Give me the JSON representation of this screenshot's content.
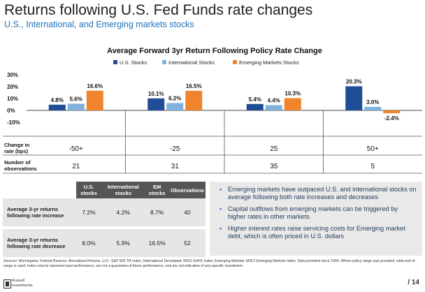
{
  "title": "Returns following U.S. Fed Funds rate changes",
  "subtitle": "U.S., International, and Emerging markets stocks",
  "chart_data": {
    "type": "bar",
    "title": "Average Forward 3yr Return Following Policy Rate Change",
    "categories": [
      "-50+",
      "-25",
      "25",
      "50+"
    ],
    "series": [
      {
        "name": "U.S. Stocks",
        "color": "#1f4e96",
        "values": [
          4.8,
          10.1,
          5.4,
          20.3
        ],
        "labels": [
          "4.8%",
          "10.1%",
          "5.4%",
          "20.3%"
        ]
      },
      {
        "name": "International Stocks",
        "color": "#7fb2de",
        "values": [
          5.6,
          6.2,
          4.4,
          3.0
        ],
        "labels": [
          "5.6%",
          "6.2%",
          "4.4%",
          "3.0%"
        ]
      },
      {
        "name": "Emerging Markets Stocks",
        "color": "#f0842c",
        "values": [
          16.6,
          16.5,
          10.3,
          -2.4
        ],
        "labels": [
          "16.6%",
          "16.5%",
          "10.3%",
          "-2.4%"
        ]
      }
    ],
    "yticks": [
      30,
      20,
      10,
      0,
      -10
    ],
    "ytick_labels": [
      "30%",
      "20%",
      "10%",
      "0%",
      "-10%"
    ],
    "ylim": [
      -10,
      30
    ],
    "legend_position": "top",
    "rows": [
      {
        "label": "Change in rate (bps)",
        "values": [
          "-50+",
          "-25",
          "25",
          "50+"
        ]
      },
      {
        "label": "Number of observations",
        "values": [
          "21",
          "31",
          "35",
          "5"
        ]
      }
    ]
  },
  "stats_table": {
    "headers": [
      "U.S. stocks",
      "International stocks",
      "EM stocks",
      "Observations"
    ],
    "rows": [
      {
        "label": "Average 3-yr returns following rate increase",
        "values": [
          "7.2%",
          "4.2%",
          "8.7%",
          "40"
        ]
      },
      {
        "label": "Average 3-yr returns following rate decrease",
        "values": [
          "8.0%",
          "5.9%",
          "16.5%",
          "52"
        ]
      }
    ]
  },
  "notes": [
    "Emerging markets have outpaced U.S. and international stocks on average following both rate increases and decreases",
    "Capital outflows from emerging markets can be triggered by higher rates in other markets",
    "Higher interest rates raise servicing costs for Emerging market debt, which is often priced in U.S. dollars"
  ],
  "sources": "Sources: Morningstar, Federal Reserve. Annualized Returns. U.S.: S&P 500 TR Index; International Developed: MSCI EAFE Index; Emerging Markets: MSCI Emerging Markets Index. Data provided since 1990. Where policy range was provided, wide end of range is used. Index returns represent past performance, are not a guarantee of future performance, and are not indicative of any specific investment.",
  "logo": {
    "line1": "Russell",
    "line2": "Investments"
  },
  "page_number": "/ 14"
}
